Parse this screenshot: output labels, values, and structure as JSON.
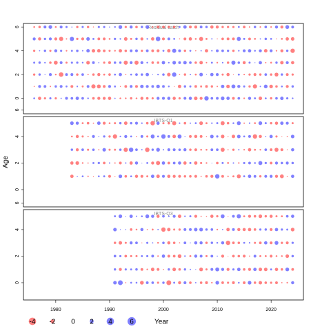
{
  "chart_data": {
    "type": "scatter",
    "subtype": "bubble-residual-plot",
    "ylabel": "Age",
    "xlabel": "Year",
    "xlim": [
      1974,
      2026
    ],
    "xticks": [
      1980,
      1990,
      2000,
      2010,
      2020
    ],
    "colors": {
      "positive": "#FF5555",
      "negative": "#5555FF"
    },
    "panels": [
      {
        "title": "Residual catch",
        "ylim": [
          -1.3,
          6.3
        ],
        "yticks": [
          0,
          2,
          4,
          6
        ],
        "ages": [
          0,
          1,
          2,
          3,
          4,
          5,
          6
        ],
        "years": [
          1976,
          2024
        ],
        "seed": 11
      },
      {
        "title": "IBTS-Q1",
        "ylim": [
          -1.3,
          5.5
        ],
        "yticks": [
          0,
          2,
          4,
          6
        ],
        "ages": [
          1,
          2,
          3,
          4,
          5
        ],
        "years": [
          1983,
          2024
        ],
        "seed": 29
      },
      {
        "title": "IBTS-Q3",
        "ylim": [
          -1.3,
          5.5
        ],
        "yticks": [
          0,
          2,
          4,
          6
        ],
        "ages": [
          0,
          1,
          2,
          3,
          4,
          5
        ],
        "years": [
          1991,
          2024
        ],
        "seed": 47
      }
    ],
    "legend": {
      "entries": [
        {
          "value": -4,
          "label": "-4"
        },
        {
          "value": -2,
          "label": "-2"
        },
        {
          "value": 0,
          "label": "0"
        },
        {
          "value": 2,
          "label": "2"
        },
        {
          "value": 4,
          "label": "4"
        },
        {
          "value": 6,
          "label": "6"
        }
      ],
      "title": "Year"
    }
  }
}
